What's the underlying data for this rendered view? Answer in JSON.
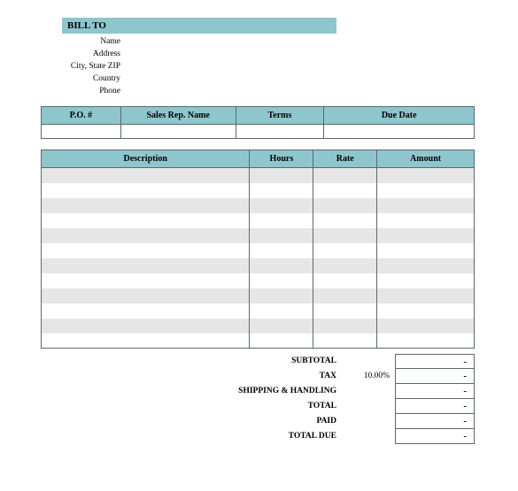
{
  "billto": {
    "heading": "BILL TO",
    "labels": {
      "name": "Name",
      "address": "Address",
      "cityzip": "City, State ZIP",
      "country": "Country",
      "phone": "Phone"
    }
  },
  "order_table": {
    "headers": {
      "po": "P.O. #",
      "rep": "Sales Rep. Name",
      "terms": "Terms",
      "due": "Due Date"
    }
  },
  "items_table": {
    "headers": {
      "desc": "Description",
      "hours": "Hours",
      "rate": "Rate",
      "amount": "Amount"
    },
    "col_widths": {
      "desc": 236,
      "hours": 72,
      "rate": 72,
      "amount": 110
    },
    "row_count": 12
  },
  "totals": {
    "subtotal": {
      "label": "SUBTOTAL",
      "value": "-"
    },
    "tax": {
      "label": "TAX",
      "rate": "10.00%",
      "value": "-"
    },
    "shipping": {
      "label": "SHIPPING & HANDLING",
      "value": "-"
    },
    "total": {
      "label": "TOTAL",
      "value": "-"
    },
    "paid": {
      "label": "PAID",
      "value": "-"
    },
    "due": {
      "label": "TOTAL DUE",
      "value": "-"
    }
  },
  "colors": {
    "header_bg": "#8ec6ce",
    "border": "#5a6a6c",
    "alt_row": "#e6e6e6",
    "white": "#ffffff"
  }
}
